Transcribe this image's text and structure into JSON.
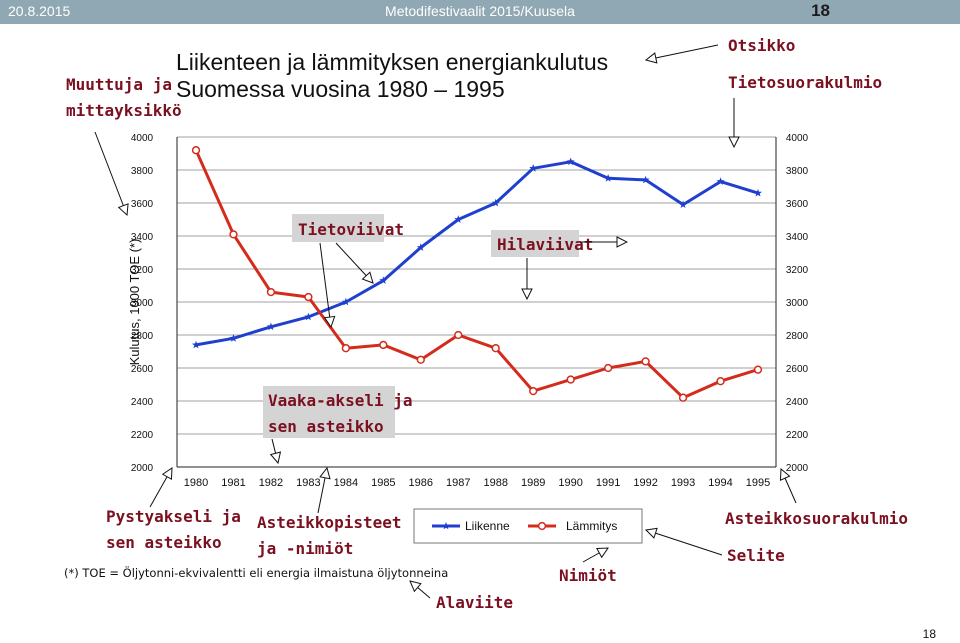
{
  "header": {
    "date": "20.8.2015",
    "event": "Metodifestivaalit 2015/Kuusela",
    "slide_number": "18"
  },
  "footer": {
    "page_number": "18"
  },
  "footnote": "(*) TOE = Öljytonni-ekvivalentti eli energia ilmaistuna öljytonneina",
  "annotations": {
    "muuttuja": [
      "Muuttuja ja",
      "mittayksikkö"
    ],
    "otsikko": "Otsikko",
    "tietosuorakulmio": "Tietosuorakulmio",
    "tietoviivat": "Tietoviivat",
    "hilaviivat": "Hilaviivat",
    "vaaka_akseli": [
      "Vaaka-akseli ja",
      "sen asteikko"
    ],
    "pystyakseli": [
      "Pystyakseli ja",
      "sen asteikko"
    ],
    "asteikkopisteet": [
      "Asteikkopisteet",
      "ja -nimiöt"
    ],
    "nimiot": "Nimiöt",
    "alaviite": "Alaviite",
    "asteikkosuorakulmio": "Asteikkosuorakulmio",
    "selite": "Selite"
  },
  "colors": {
    "liikenne": "#1f3fcf",
    "lammitys": "#d42b1c",
    "annotation": "#7a1020",
    "header_bg": "#8fa8b3",
    "label_box": "#d4d4d4"
  },
  "chart_data": {
    "type": "line",
    "title": [
      "Liikenteen ja lämmityksen energiankulutus",
      "Suomessa vuosina 1980 – 1995"
    ],
    "ylabel": "Kulutus, 1000 TOE (*)",
    "xlabel": "",
    "ylim": [
      2000,
      4000
    ],
    "yticks": [
      "2000",
      "2200",
      "2400",
      "2600",
      "2800",
      "3000",
      "3200",
      "3400",
      "3600",
      "3800",
      "4000"
    ],
    "categories": [
      "1980",
      "1981",
      "1982",
      "1983",
      "1984",
      "1985",
      "1986",
      "1987",
      "1988",
      "1989",
      "1990",
      "1991",
      "1992",
      "1993",
      "1994",
      "1995"
    ],
    "grid": true,
    "legend_position": "bottom",
    "series": [
      {
        "name": "Liikenne",
        "marker": "star",
        "values": [
          2740,
          2780,
          2850,
          2910,
          3000,
          3130,
          3330,
          3500,
          3600,
          3810,
          3850,
          3750,
          3740,
          3590,
          3730,
          3660
        ]
      },
      {
        "name": "Lämmitys",
        "marker": "circle",
        "values": [
          3920,
          3410,
          3060,
          3030,
          2720,
          2740,
          2650,
          2800,
          2720,
          2460,
          2530,
          2600,
          2640,
          2420,
          2520,
          2590
        ]
      }
    ]
  }
}
